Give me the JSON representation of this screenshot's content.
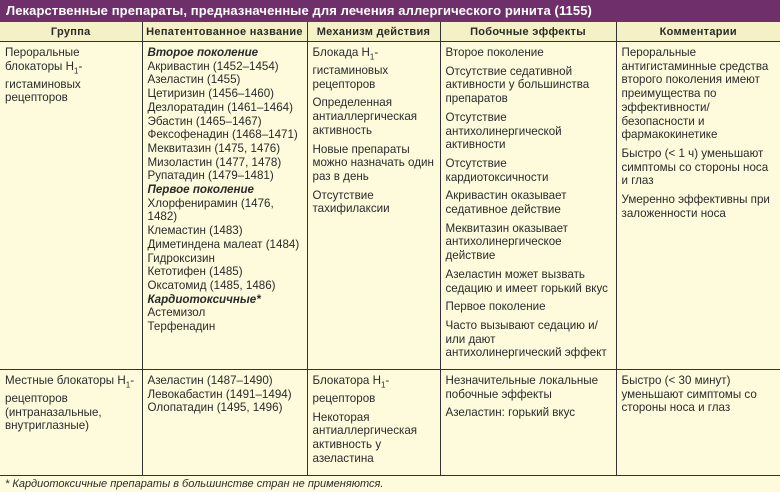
{
  "title": "Лекарственные препараты, предназначенные для лечения аллергического ринита (1155)",
  "headers": [
    "Группа",
    "Непатентованное название",
    "Механизм действия",
    "Побочные эффекты",
    "Комментарии"
  ],
  "rows": [
    {
      "group": {
        "pre": "Пероральные блокаторы H",
        "sub": "1",
        "post": "-гистаминовых рецепторов"
      },
      "names": [
        {
          "t": "Второе поколение",
          "h": true
        },
        {
          "t": "Акривастин (1452–1454)"
        },
        {
          "t": "Азеластин (1455)"
        },
        {
          "t": "Цетиризин (1456–1460)"
        },
        {
          "t": "Дезлоратадин (1461–1464)"
        },
        {
          "t": "Эбастин (1465–1467)"
        },
        {
          "t": "Фексофенадин (1468–1471)"
        },
        {
          "t": "Меквитазин (1475, 1476)"
        },
        {
          "t": "Мизоластин (1477, 1478)"
        },
        {
          "t": "Рупатадин (1479–1481)"
        },
        {
          "t": "Первое поколение",
          "h": true
        },
        {
          "t": "Хлорфенирамин (1476, 1482)"
        },
        {
          "t": "Клемастин (1483)"
        },
        {
          "t": "Диметиндена малеат (1484)"
        },
        {
          "t": "Гидроксизин"
        },
        {
          "t": "Кетотифен (1485)"
        },
        {
          "t": "Оксатомид (1485, 1486)"
        },
        {
          "t": "Кардиотоксичные*",
          "h": true
        },
        {
          "t": "Астемизол"
        },
        {
          "t": "Терфенадин"
        }
      ],
      "mechanism": [
        {
          "pre": "Блокада H",
          "sub": "1",
          "post": "-гистаминовых рецепторов"
        },
        {
          "pre": "Определенная антиаллергическая активность"
        },
        {
          "pre": "Новые препараты можно назначать один раз в день"
        },
        {
          "pre": "Отсутствие тахифилаксии"
        }
      ],
      "effects": [
        "Второе поколение",
        "Отсутствие седативной активности у большинства препаратов",
        "Отсутствие антихолинергической активности",
        "Отсутствие кардиотоксичности",
        "Акривастин оказывает седативное действие",
        "Меквитазин оказывает антихолинергическое действие",
        "Азеластин может вызвать седацию и имеет горький вкус",
        "Первое поколение",
        "Часто вызывают седацию и/или дают антихолинергический эффект"
      ],
      "comments": [
        "Пероральные антигистаминные средства второго поколения имеют преимущества по эффективности/безопасности и фармакокинетике",
        "Быстро (< 1 ч) уменьшают симптомы со стороны носа и глаз",
        "Умеренно эффективны при заложенности носа"
      ]
    },
    {
      "group": {
        "pre": "Местные блокаторы H",
        "sub": "1",
        "post": "-рецепторов (интраназальные, внутриглазные)"
      },
      "names": [
        {
          "t": "Азеластин (1487–1490)"
        },
        {
          "t": "Левокабастин (1491–1494)"
        },
        {
          "t": "Олопатадин (1495, 1496)"
        }
      ],
      "mechanism": [
        {
          "pre": "Блокатора H",
          "sub": "1",
          "post": "-рецепторов"
        },
        {
          "pre": "Некоторая антиаллергическая активность у азеластина"
        }
      ],
      "effects": [
        "Незначительные локальные побочные эффекты",
        "Азеластин: горький вкус"
      ],
      "comments": [
        "Быстро (< 30 минут) уменьшают симптомы со стороны носа и глаз"
      ]
    }
  ],
  "footnote": "* Кардиотоксичные препараты в большинстве стран не применяются.",
  "colors": {
    "title_bg": "#6e2f6a",
    "header_bg": "#f5f1c6",
    "body_bg": "#fdfbdc"
  }
}
